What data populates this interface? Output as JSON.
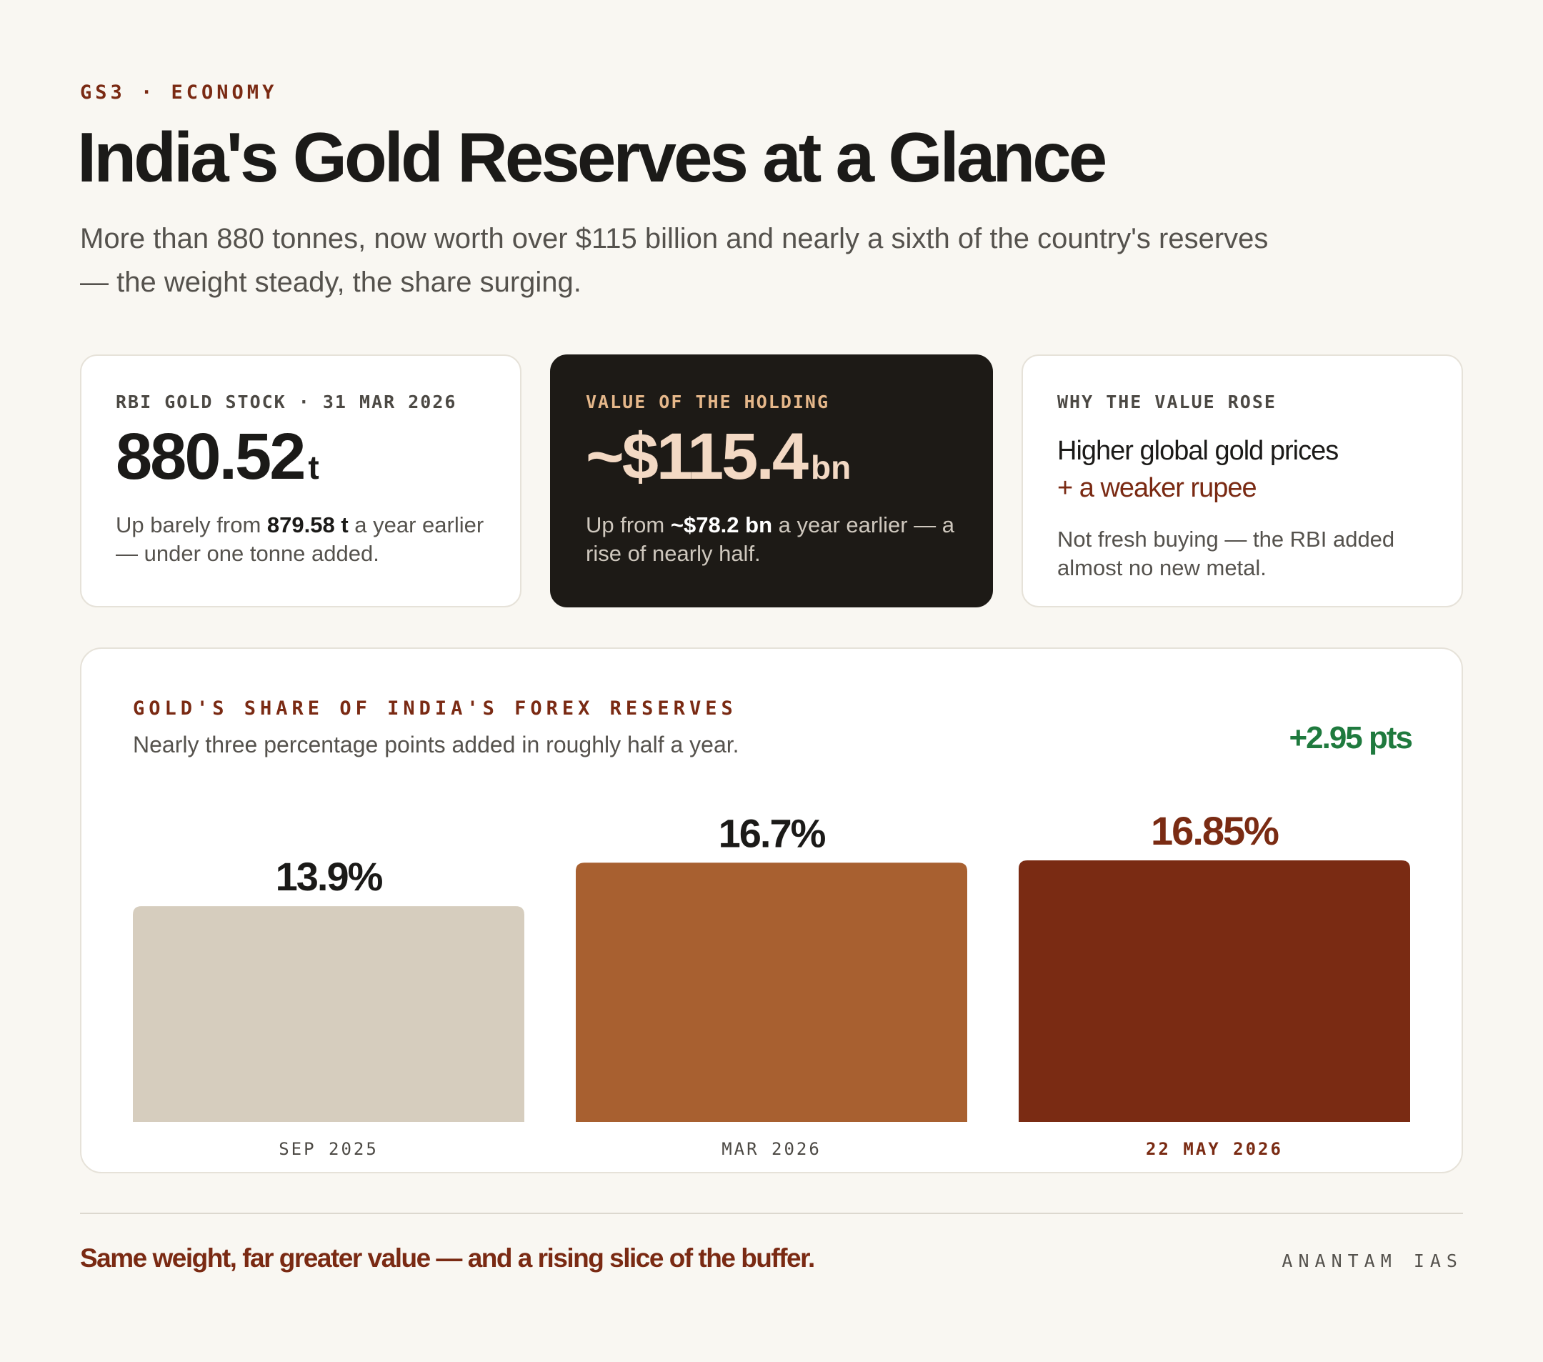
{
  "header": {
    "kicker": "GS3 · ECONOMY",
    "title": "India's Gold Reserves at a Glance",
    "subtitle": "More than 880 tonnes, now worth over $115 billion and nearly a sixth of the country's reserves — the weight steady, the share surging."
  },
  "cards": {
    "stock": {
      "label": "RBI GOLD STOCK · 31 MAR 2026",
      "value": "880.52",
      "unit": "t",
      "note_pre": "Up barely from ",
      "note_bold": "879.58 t",
      "note_post": " a year earlier — under one tonne added."
    },
    "value": {
      "label": "VALUE OF THE HOLDING",
      "value": "~$115.4",
      "unit": "bn",
      "note_pre": "Up from ",
      "note_bold": "~$78.2 bn",
      "note_post": " a year earlier — a rise of nearly half."
    },
    "why": {
      "label": "WHY THE VALUE ROSE",
      "line1": "Higher global gold prices",
      "line2": "+ a weaker rupee",
      "note": "Not fresh buying — the RBI added almost no new metal."
    }
  },
  "chart_data": {
    "type": "bar",
    "title": "GOLD'S SHARE OF INDIA'S FOREX RESERVES",
    "subtitle": "Nearly three percentage points added in roughly half a year.",
    "delta_label": "+2.95 pts",
    "categories": [
      "SEP 2025",
      "MAR 2026",
      "22 MAY 2026"
    ],
    "values": [
      13.9,
      16.7,
      16.85
    ],
    "value_labels": [
      "13.9%",
      "16.7%",
      "16.85%"
    ],
    "unit": "%",
    "colors": [
      "#d6cdbe",
      "#a86030",
      "#7a2b13"
    ],
    "label_colors": [
      "#1b1a18",
      "#1b1a18",
      "#7a2b13"
    ],
    "ylim": [
      0,
      16.85
    ],
    "grid": false,
    "legend": "none"
  },
  "footer": {
    "tagline": "Same weight, far greater value — and a rising slice of the buffer.",
    "brand": "ANANTAM IAS"
  }
}
